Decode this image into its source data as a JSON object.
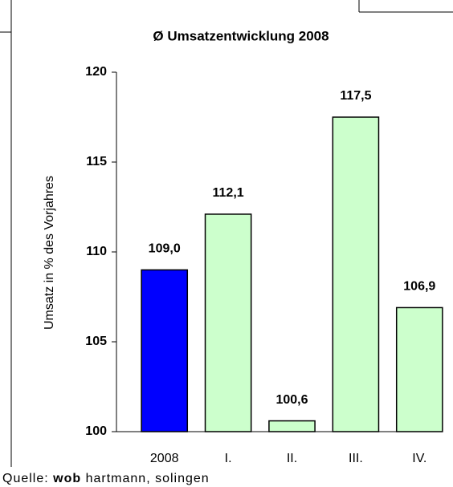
{
  "chart_data": {
    "type": "bar",
    "title": "Ø Umsatzentwicklung 2008",
    "y_axis_label": "Umsatz in % des Vorjahres",
    "categories": [
      "2008",
      "I.",
      "II.",
      "III.",
      "IV."
    ],
    "values": [
      109.0,
      112.1,
      100.6,
      117.5,
      106.9
    ],
    "value_labels": [
      "109,0",
      "112,1",
      "100,6",
      "117,5",
      "106,9"
    ],
    "colors": [
      "#0000ff",
      "#ccffcc",
      "#ccffcc",
      "#ccffcc",
      "#ccffcc"
    ],
    "ylim": [
      100,
      120
    ],
    "yticks": [
      100,
      105,
      110,
      115,
      120
    ],
    "grid": false
  },
  "source": {
    "prefix": "Quelle:",
    "bold": "wob",
    "suffix": "hartmann, solingen"
  }
}
